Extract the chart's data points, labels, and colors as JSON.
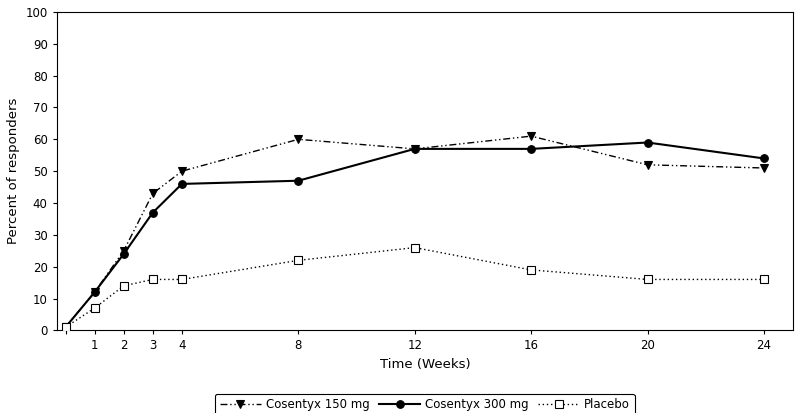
{
  "weeks": [
    0,
    1,
    2,
    3,
    4,
    8,
    12,
    16,
    20,
    24
  ],
  "cosentyx_150": [
    1,
    12,
    25,
    43,
    50,
    60,
    57,
    61,
    52,
    51
  ],
  "cosentyx_300": [
    1,
    12,
    24,
    37,
    46,
    47,
    57,
    57,
    59,
    54
  ],
  "placebo": [
    1,
    7,
    14,
    16,
    16,
    22,
    26,
    19,
    16,
    16
  ],
  "ylabel": "Percent of responders",
  "xlabel": "Time (Weeks)",
  "ylim": [
    0,
    100
  ],
  "yticks": [
    0,
    10,
    20,
    30,
    40,
    50,
    60,
    70,
    80,
    90,
    100
  ],
  "xticks": [
    0,
    1,
    2,
    3,
    4,
    8,
    12,
    16,
    20,
    24
  ],
  "xticklabels": [
    "",
    "1",
    "2",
    "3",
    "4",
    "8",
    "12",
    "16",
    "20",
    "24"
  ],
  "legend_labels": [
    "Cosentyx 150 mg",
    "Cosentyx 300 mg",
    "Placebo"
  ],
  "line_color": "#000000",
  "background_color": "#ffffff"
}
